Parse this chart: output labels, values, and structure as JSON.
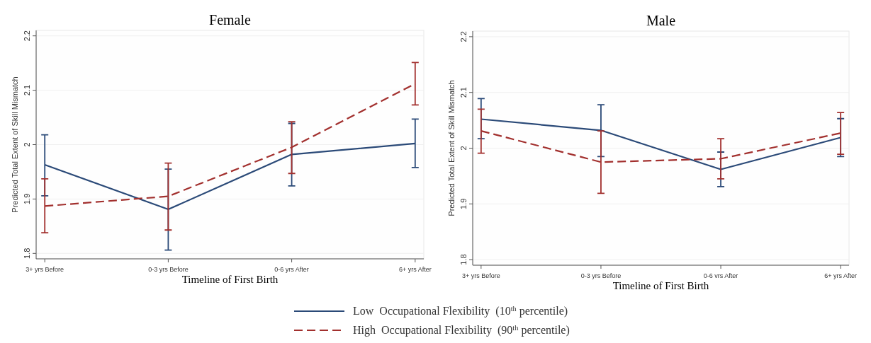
{
  "chart_data": [
    {
      "type": "line",
      "title": "Female",
      "xlabel": "Timeline of First Birth",
      "ylabel": "Predicted Total Extent of Skill Mismatch",
      "categories": [
        "3+ yrs Before",
        "0-3 yrs Before",
        "0-6 yrs After",
        "6+ yrs After"
      ],
      "ylim": [
        1.79,
        2.21
      ],
      "yticks": [
        1.8,
        1.9,
        2,
        2.1,
        2.2
      ],
      "grid": "y",
      "legend": "bottom",
      "series": [
        {
          "name": "Low  Occupational Flexibility  (10$^{th}$ percentile)",
          "color": "#2b4a78",
          "line_style": "solid",
          "values": [
            1.963,
            1.881,
            1.982,
            2.002
          ],
          "errors": [
            [
              1.906,
              2.018
            ],
            [
              1.806,
              1.955
            ],
            [
              1.924,
              2.039
            ],
            [
              1.958,
              2.047
            ]
          ]
        },
        {
          "name": "High  Occupational Flexibility  (90$^{th}$ percentile)",
          "color": "#a2302e",
          "line_style": "dashed",
          "values": [
            1.887,
            1.905,
            1.995,
            2.112
          ],
          "errors": [
            [
              1.838,
              1.937
            ],
            [
              1.843,
              1.966
            ],
            [
              1.947,
              2.042
            ],
            [
              2.073,
              2.151
            ]
          ]
        }
      ]
    },
    {
      "type": "line",
      "title": "Male",
      "xlabel": "Timeline of First Birth",
      "ylabel": "Predicted Total Extent of Skill Mismatch",
      "categories": [
        "3+ yrs Before",
        "0-3 yrs Before",
        "0-6 vrs After",
        "6+ yrs After"
      ],
      "ylim": [
        1.79,
        2.21
      ],
      "yticks": [
        1.8,
        1.9,
        2,
        2.1,
        2.2
      ],
      "grid": "y",
      "series": [
        {
          "color": "#2b4a78",
          "line_style": "solid",
          "values": [
            2.052,
            2.032,
            1.962,
            2.019
          ],
          "errors": [
            [
              2.017,
              2.089
            ],
            [
              1.985,
              2.078
            ],
            [
              1.931,
              1.993
            ],
            [
              1.985,
              2.053
            ]
          ]
        },
        {
          "color": "#a2302e",
          "line_style": "dashed",
          "values": [
            2.031,
            1.975,
            1.981,
            2.027
          ],
          "errors": [
            [
              1.991,
              2.07
            ],
            [
              1.919,
              2.031
            ],
            [
              1.945,
              2.017
            ],
            [
              1.989,
              2.064
            ]
          ]
        }
      ]
    }
  ]
}
